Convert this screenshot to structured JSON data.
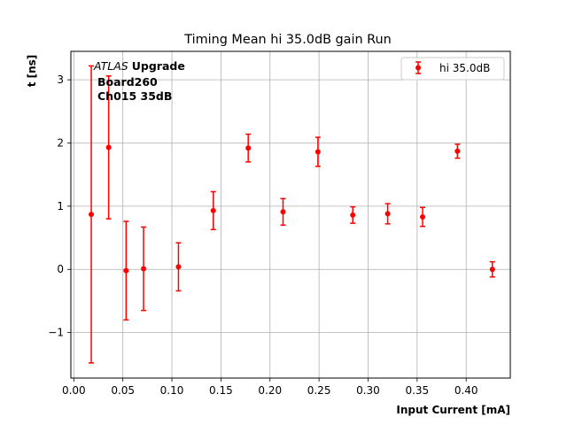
{
  "chart_data": {
    "type": "scatter",
    "title": "Timing Mean hi 35.0dB gain Run",
    "xlabel": "Input Current [mA]",
    "ylabel": "t [ns]",
    "xlim": [
      -0.003,
      0.445
    ],
    "ylim": [
      -1.72,
      3.45
    ],
    "xticks": [
      0.0,
      0.05,
      0.1,
      0.15,
      0.2,
      0.25,
      0.3,
      0.35,
      0.4
    ],
    "xtick_labels": [
      "0.00",
      "0.05",
      "0.10",
      "0.15",
      "0.20",
      "0.25",
      "0.30",
      "0.35",
      "0.40"
    ],
    "yticks": [
      -1,
      0,
      1,
      2,
      3
    ],
    "ytick_labels": [
      "−1",
      "0",
      "1",
      "2",
      "3"
    ],
    "grid": true,
    "legend_position": "top-right",
    "annotation": {
      "atlas": "ATLAS",
      "upgrade": "Upgrade",
      "board": "Board260",
      "channel": "Ch015 35dB"
    },
    "series": [
      {
        "name": "hi 35.0dB",
        "color": "#ff0000",
        "points": [
          {
            "x": 0.0178,
            "y": 0.87,
            "err": 2.35
          },
          {
            "x": 0.0355,
            "y": 1.93,
            "err": 1.13
          },
          {
            "x": 0.0533,
            "y": -0.02,
            "err": 0.78
          },
          {
            "x": 0.0711,
            "y": 0.01,
            "err": 0.66
          },
          {
            "x": 0.1067,
            "y": 0.04,
            "err": 0.38
          },
          {
            "x": 0.1422,
            "y": 0.93,
            "err": 0.3
          },
          {
            "x": 0.1778,
            "y": 1.92,
            "err": 0.22
          },
          {
            "x": 0.2133,
            "y": 0.91,
            "err": 0.21
          },
          {
            "x": 0.2489,
            "y": 1.86,
            "err": 0.23
          },
          {
            "x": 0.2844,
            "y": 0.86,
            "err": 0.13
          },
          {
            "x": 0.32,
            "y": 0.88,
            "err": 0.16
          },
          {
            "x": 0.3556,
            "y": 0.83,
            "err": 0.15
          },
          {
            "x": 0.3911,
            "y": 1.87,
            "err": 0.11
          },
          {
            "x": 0.4267,
            "y": 0.0,
            "err": 0.12
          }
        ]
      }
    ]
  }
}
